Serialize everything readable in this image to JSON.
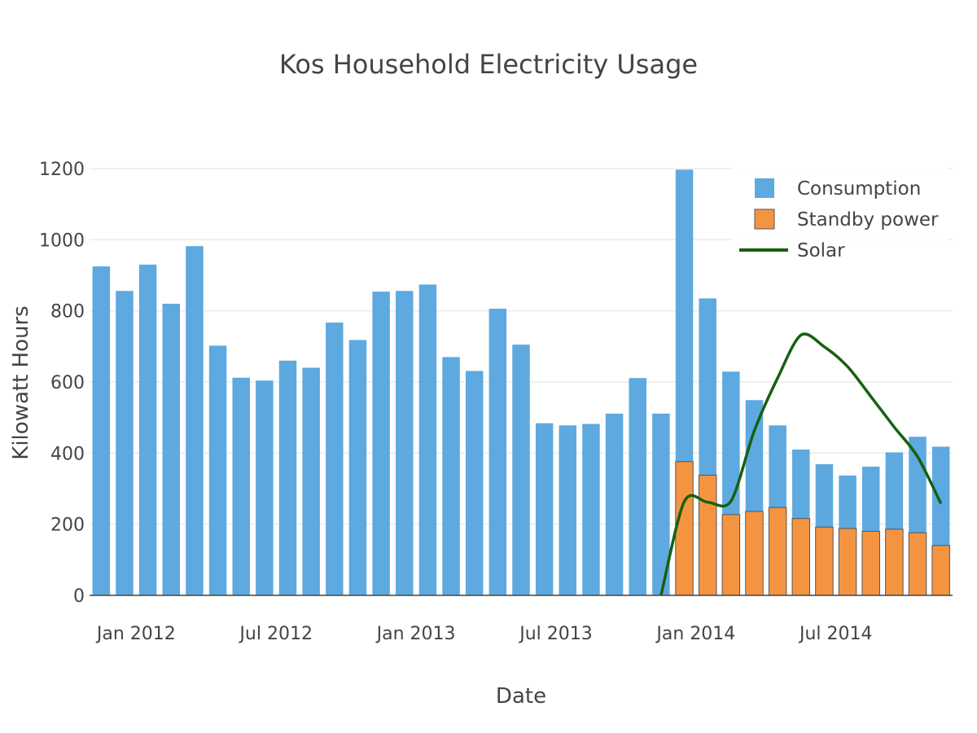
{
  "chart_data": {
    "type": "bar",
    "title": "Kos Household Electricity Usage",
    "xlabel": "Date",
    "ylabel": "Kilowatt Hours",
    "ylim": [
      0,
      1200
    ],
    "yticks": [
      0,
      200,
      400,
      600,
      800,
      1000,
      1200
    ],
    "x_tick_labels": [
      "Jan 2012",
      "Jul 2012",
      "Jan 2013",
      "Jul 2013",
      "Jan 2014",
      "Jul 2014"
    ],
    "x_tick_dates": [
      "2012-01-01",
      "2012-07-01",
      "2013-01-01",
      "2013-07-01",
      "2014-01-01",
      "2014-07-01"
    ],
    "grid": true,
    "legend_position": "top-right",
    "colors": {
      "consumption": "#5DA9E0",
      "standby": "#F59440",
      "solar": "#17600F",
      "bar_outline": "#555555"
    },
    "categories": [
      "2011-11",
      "2011-12",
      "2012-01",
      "2012-02",
      "2012-03",
      "2012-04",
      "2012-05",
      "2012-06",
      "2012-07",
      "2012-08",
      "2012-09",
      "2012-10",
      "2012-11",
      "2012-12",
      "2013-01",
      "2013-02",
      "2013-03",
      "2013-04",
      "2013-05",
      "2013-06",
      "2013-07",
      "2013-08",
      "2013-09",
      "2013-10",
      "2013-11",
      "2013-12",
      "2014-01",
      "2014-02",
      "2014-03",
      "2014-04",
      "2014-05",
      "2014-06",
      "2014-07",
      "2014-08",
      "2014-09",
      "2014-10",
      "2014-11"
    ],
    "series": [
      {
        "name": "Consumption",
        "kind": "bar",
        "values": [
          925,
          856,
          930,
          820,
          982,
          702,
          612,
          604,
          660,
          640,
          767,
          718,
          854,
          856,
          874,
          670,
          631,
          806,
          705,
          484,
          478,
          482,
          511,
          611,
          511,
          1197,
          835,
          629,
          549,
          478,
          410,
          369,
          337,
          362,
          402,
          446,
          418
        ]
      },
      {
        "name": "Standby power",
        "kind": "bar",
        "values": [
          null,
          null,
          null,
          null,
          null,
          null,
          null,
          null,
          null,
          null,
          null,
          null,
          null,
          null,
          null,
          null,
          null,
          null,
          null,
          null,
          null,
          null,
          null,
          null,
          null,
          376,
          338,
          227,
          236,
          247,
          216,
          192,
          188,
          180,
          186,
          176,
          140
        ]
      },
      {
        "name": "Solar",
        "kind": "line",
        "x": [
          "2013-11",
          "2013-12",
          "2014-01",
          "2014-02",
          "2014-03",
          "2014-04",
          "2014-05",
          "2014-06",
          "2014-07",
          "2014-08",
          "2014-09",
          "2014-10",
          "2014-11"
        ],
        "values": [
          0,
          264,
          262,
          265,
          463,
          611,
          732,
          699,
          643,
          559,
          473,
          390,
          258
        ]
      }
    ]
  }
}
